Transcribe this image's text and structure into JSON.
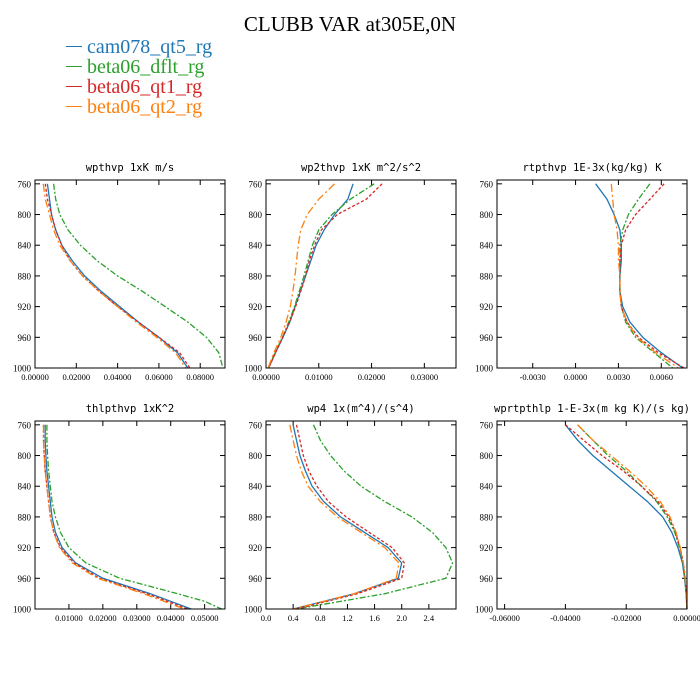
{
  "title": "CLUBB VAR at305E,0N",
  "legend": [
    {
      "label": "cam078_qt5_rg",
      "color": "#1f77b4"
    },
    {
      "label": "beta06_dflt_rg",
      "color": "#2ca02c"
    },
    {
      "label": "beta06_qt1_rg",
      "color": "#d62728"
    },
    {
      "label": "beta06_qt2_rg",
      "color": "#ff7f0e"
    }
  ],
  "chart_data": [
    {
      "type": "line",
      "title": "wpthvp   1xK m/s",
      "ylim": [
        1000,
        755
      ],
      "yticks": [
        760,
        800,
        840,
        880,
        920,
        960,
        1000
      ],
      "xlim": [
        0,
        0.092
      ],
      "xticks": [
        0,
        0.02,
        0.04,
        0.06,
        0.08
      ],
      "xticklabels": [
        "0.00000",
        "0.02000",
        "0.04000",
        "0.06000",
        "0.08000"
      ],
      "y": [
        760,
        780,
        800,
        820,
        840,
        860,
        880,
        900,
        920,
        940,
        960,
        980,
        1000
      ],
      "series": [
        {
          "name": "cam078_qt5_rg",
          "x": [
            0.006,
            0.007,
            0.008,
            0.01,
            0.013,
            0.018,
            0.024,
            0.032,
            0.041,
            0.05,
            0.06,
            0.069,
            0.074
          ]
        },
        {
          "name": "beta06_dflt_rg",
          "x": [
            0.009,
            0.01,
            0.012,
            0.016,
            0.022,
            0.03,
            0.04,
            0.052,
            0.063,
            0.074,
            0.083,
            0.089,
            0.091
          ]
        },
        {
          "name": "beta06_qt1_rg",
          "x": [
            0.005,
            0.006,
            0.008,
            0.01,
            0.013,
            0.017,
            0.023,
            0.031,
            0.04,
            0.05,
            0.06,
            0.07,
            0.075
          ]
        },
        {
          "name": "beta06_qt2_rg",
          "x": [
            0.004,
            0.005,
            0.007,
            0.009,
            0.012,
            0.017,
            0.023,
            0.031,
            0.04,
            0.049,
            0.059,
            0.068,
            0.073
          ]
        }
      ]
    },
    {
      "type": "line",
      "title": "wp2thvp   1xK m^2/s^2",
      "ylim": [
        1000,
        755
      ],
      "yticks": [
        760,
        800,
        840,
        880,
        920,
        960,
        1000
      ],
      "xlim": [
        0,
        0.036
      ],
      "xticks": [
        0,
        0.01,
        0.02,
        0.03
      ],
      "xticklabels": [
        "0.00000",
        "0.01000",
        "0.02000",
        "0.03000"
      ],
      "y": [
        760,
        780,
        800,
        820,
        840,
        860,
        880,
        900,
        920,
        940,
        960,
        980,
        1000
      ],
      "series": [
        {
          "name": "cam078_qt5_rg",
          "x": [
            0.0165,
            0.0155,
            0.013,
            0.011,
            0.0095,
            0.0085,
            0.0075,
            0.0065,
            0.0055,
            0.0045,
            0.0032,
            0.0018,
            0.0005
          ]
        },
        {
          "name": "beta06_dflt_rg",
          "x": [
            0.0205,
            0.016,
            0.0125,
            0.01,
            0.0088,
            0.008,
            0.0072,
            0.0063,
            0.0054,
            0.0043,
            0.0031,
            0.0017,
            0.0004
          ]
        },
        {
          "name": "beta06_qt1_rg",
          "x": [
            0.022,
            0.019,
            0.0135,
            0.0105,
            0.0092,
            0.0082,
            0.0075,
            0.0066,
            0.0056,
            0.0045,
            0.0032,
            0.0018,
            0.0005
          ]
        },
        {
          "name": "beta06_qt2_rg",
          "x": [
            0.013,
            0.01,
            0.0078,
            0.0066,
            0.0061,
            0.0058,
            0.0055,
            0.0051,
            0.0046,
            0.0038,
            0.0028,
            0.0015,
            0.0004
          ]
        }
      ]
    },
    {
      "type": "line",
      "title": "rtpthvp   1E-3x(kg/kg) K",
      "ylim": [
        1000,
        755
      ],
      "yticks": [
        760,
        800,
        840,
        880,
        920,
        960,
        1000
      ],
      "xlim": [
        -0.0055,
        0.0078
      ],
      "xticks": [
        -0.003,
        0,
        0.003,
        0.006
      ],
      "xticklabels": [
        "-0.0030",
        "0.0000",
        "0.0030",
        "0.0060"
      ],
      "y": [
        760,
        780,
        800,
        820,
        840,
        860,
        880,
        900,
        920,
        940,
        960,
        980,
        1000
      ],
      "series": [
        {
          "name": "cam078_qt5_rg",
          "x": [
            0.0014,
            0.0022,
            0.0027,
            0.0031,
            0.0032,
            0.0032,
            0.0031,
            0.0031,
            0.0033,
            0.0038,
            0.0047,
            0.006,
            0.0075
          ]
        },
        {
          "name": "beta06_dflt_rg",
          "x": [
            0.0052,
            0.0044,
            0.0037,
            0.0033,
            0.0031,
            0.0031,
            0.0031,
            0.0031,
            0.0032,
            0.0035,
            0.0042,
            0.0055,
            0.0068
          ]
        },
        {
          "name": "beta06_qt1_rg",
          "x": [
            0.0062,
            0.0052,
            0.0042,
            0.0035,
            0.0032,
            0.0031,
            0.0031,
            0.0031,
            0.0032,
            0.0036,
            0.0044,
            0.0058,
            0.0076
          ]
        },
        {
          "name": "beta06_qt2_rg",
          "x": [
            0.0025,
            0.0026,
            0.0027,
            0.0029,
            0.003,
            0.003,
            0.0031,
            0.0031,
            0.0032,
            0.0036,
            0.0043,
            0.0056,
            0.0072
          ]
        }
      ]
    },
    {
      "type": "line",
      "title": "thlpthvp   1xK^2",
      "ylim": [
        1000,
        755
      ],
      "yticks": [
        760,
        800,
        840,
        880,
        920,
        960,
        1000
      ],
      "xlim": [
        0,
        0.056
      ],
      "xticks": [
        0.01,
        0.02,
        0.03,
        0.04,
        0.05
      ],
      "xticklabels": [
        "0.01000",
        "0.02000",
        "0.03000",
        "0.04000",
        "0.05000"
      ],
      "y": [
        760,
        780,
        800,
        820,
        840,
        860,
        880,
        900,
        920,
        940,
        960,
        980,
        990,
        1000
      ],
      "series": [
        {
          "name": "cam078_qt5_rg",
          "x": [
            0.003,
            0.003,
            0.0032,
            0.0035,
            0.004,
            0.0045,
            0.005,
            0.006,
            0.008,
            0.012,
            0.02,
            0.034,
            0.04,
            0.046
          ]
        },
        {
          "name": "beta06_dflt_rg",
          "x": [
            0.0035,
            0.0035,
            0.0037,
            0.004,
            0.0045,
            0.005,
            0.006,
            0.0075,
            0.01,
            0.015,
            0.025,
            0.042,
            0.05,
            0.055
          ]
        },
        {
          "name": "beta06_qt1_rg",
          "x": [
            0.0025,
            0.0025,
            0.0027,
            0.003,
            0.0035,
            0.004,
            0.0045,
            0.0055,
            0.0075,
            0.0115,
            0.019,
            0.033,
            0.039,
            0.045
          ]
        },
        {
          "name": "beta06_qt2_rg",
          "x": [
            0.0025,
            0.0025,
            0.0027,
            0.003,
            0.0035,
            0.004,
            0.0045,
            0.0055,
            0.0072,
            0.011,
            0.0185,
            0.032,
            0.038,
            0.044
          ]
        }
      ]
    },
    {
      "type": "line",
      "title": "wp4   1x(m^4)/(s^4)",
      "ylim": [
        1000,
        755
      ],
      "yticks": [
        760,
        800,
        840,
        880,
        920,
        960,
        1000
      ],
      "xlim": [
        0,
        2.8
      ],
      "xticks": [
        0,
        0.4,
        0.8,
        1.2,
        1.6,
        2.0,
        2.4
      ],
      "xticklabels": [
        "0.0",
        "0.4",
        "0.8",
        "1.2",
        "1.6",
        "2.0",
        "2.4"
      ],
      "y": [
        760,
        780,
        800,
        820,
        840,
        860,
        880,
        900,
        920,
        940,
        960,
        980,
        1000
      ],
      "series": [
        {
          "name": "cam078_qt5_rg",
          "x": [
            0.4,
            0.45,
            0.5,
            0.58,
            0.68,
            0.85,
            1.1,
            1.45,
            1.8,
            2.0,
            1.95,
            1.3,
            0.4
          ]
        },
        {
          "name": "beta06_dflt_rg",
          "x": [
            0.7,
            0.8,
            0.95,
            1.15,
            1.4,
            1.75,
            2.15,
            2.45,
            2.65,
            2.75,
            2.65,
            1.75,
            0.45
          ]
        },
        {
          "name": "beta06_qt1_rg",
          "x": [
            0.45,
            0.5,
            0.55,
            0.63,
            0.75,
            0.92,
            1.18,
            1.52,
            1.86,
            2.04,
            2.0,
            1.35,
            0.45
          ]
        },
        {
          "name": "beta06_qt2_rg",
          "x": [
            0.35,
            0.4,
            0.45,
            0.52,
            0.62,
            0.8,
            1.05,
            1.4,
            1.75,
            1.96,
            1.92,
            1.3,
            0.4
          ]
        }
      ]
    },
    {
      "type": "line",
      "title": "wprtpthlp   1-E-3x(m kg K)/(s kg)",
      "ylim": [
        1000,
        755
      ],
      "yticks": [
        760,
        800,
        840,
        880,
        920,
        960,
        1000
      ],
      "xlim": [
        -0.0625,
        0
      ],
      "xticks": [
        -0.06,
        -0.04,
        -0.02,
        0
      ],
      "xticklabels": [
        "-0.06000",
        "-0.04000",
        "-0.02000",
        "0.00000"
      ],
      "y": [
        760,
        780,
        800,
        820,
        840,
        860,
        880,
        900,
        920,
        940,
        960,
        980,
        1000
      ],
      "series": [
        {
          "name": "cam078_qt5_rg",
          "x": [
            -0.04,
            -0.036,
            -0.031,
            -0.025,
            -0.019,
            -0.013,
            -0.008,
            -0.005,
            -0.003,
            -0.0015,
            -0.0008,
            -0.0003,
            0
          ]
        },
        {
          "name": "beta06_dflt_rg",
          "x": [
            -0.036,
            -0.031,
            -0.026,
            -0.02,
            -0.015,
            -0.01,
            -0.0065,
            -0.004,
            -0.0025,
            -0.0013,
            -0.0007,
            -0.0003,
            0
          ]
        },
        {
          "name": "beta06_qt1_rg",
          "x": [
            -0.04,
            -0.034,
            -0.028,
            -0.021,
            -0.015,
            -0.0095,
            -0.006,
            -0.0038,
            -0.0023,
            -0.0012,
            -0.0006,
            -0.0002,
            0
          ]
        },
        {
          "name": "beta06_qt2_rg",
          "x": [
            -0.036,
            -0.031,
            -0.025,
            -0.019,
            -0.0135,
            -0.0088,
            -0.0056,
            -0.0036,
            -0.0022,
            -0.0012,
            -0.0006,
            -0.0002,
            0
          ]
        }
      ]
    }
  ]
}
